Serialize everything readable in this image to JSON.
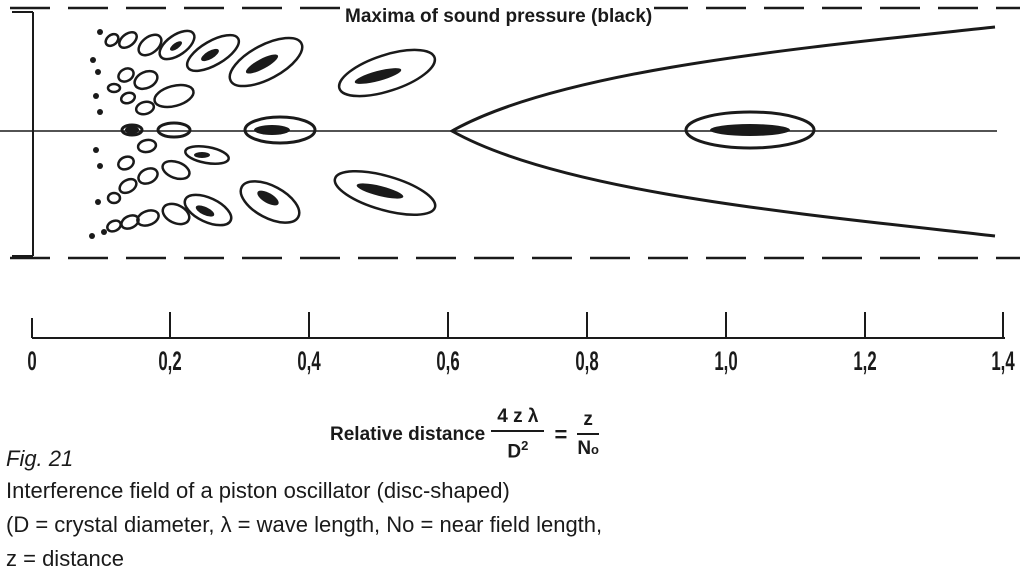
{
  "diagram": {
    "title": "Maxima of sound pressure (black)",
    "axis": {
      "ticks": [
        "0",
        "0,2",
        "0,4",
        "0,6",
        "0,8",
        "1,0",
        "1,2",
        "1,4"
      ],
      "label": "Relative distance",
      "formula": {
        "lhs_num": "4 z λ",
        "lhs_den": "D",
        "lhs_den_exp": "2",
        "equals": "=",
        "rhs_num": "z",
        "rhs_den": "N",
        "rhs_den_sub": "o"
      }
    }
  },
  "caption": {
    "fig_number": "Fig. 21",
    "line1": "Interference field of a piston oscillator (disc-shaped)",
    "line2": "(D = crystal diameter, λ = wave length, No = near field length,",
    "line3": "z = distance"
  }
}
